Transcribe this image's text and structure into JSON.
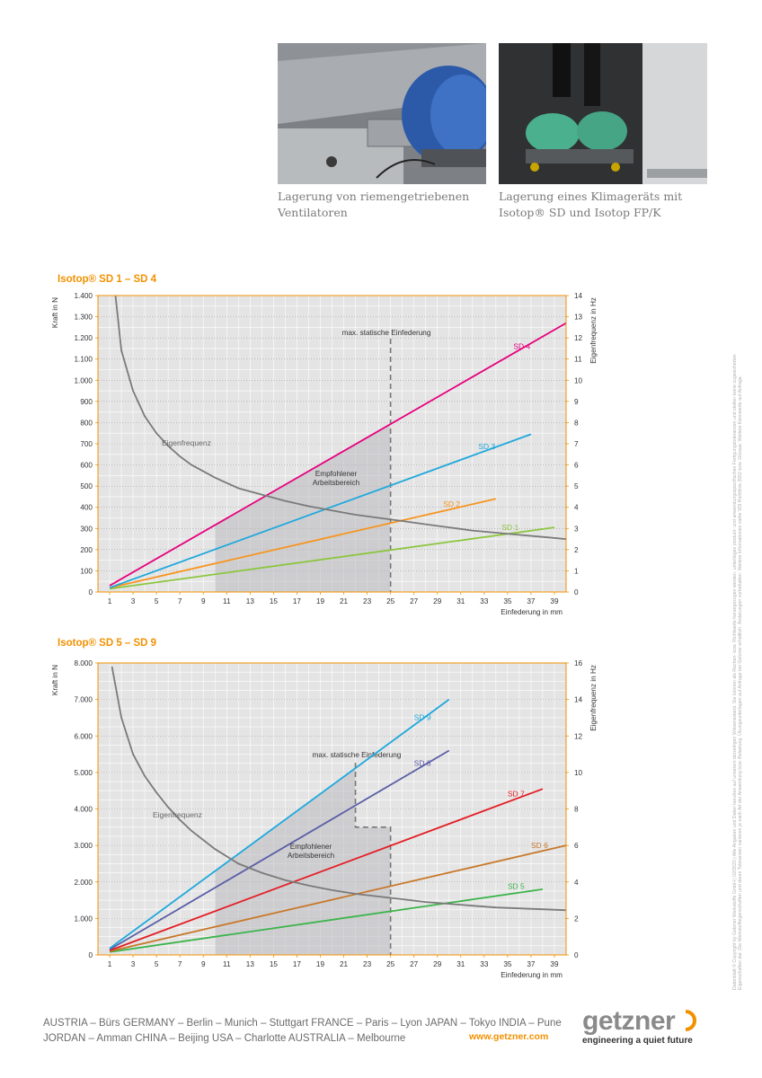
{
  "photos": [
    {
      "caption_line1": "Lagerung von riemengetriebenen",
      "caption_line2": "Ventilatoren"
    },
    {
      "caption_line1": "Lagerung eines Klimageräts mit",
      "caption_line2": "Isotop® SD und Isotop FP/K"
    }
  ],
  "side_note": "Datenblatt © Copyright by Getzner Werkstoffe GmbH | 02/2023 | Alle Angaben und Daten beruhen auf unserem derzeitigen Wissensstand. Sie können als Rechen- bzw. Richtwerte herangezogen werden, unterliegen produkt- und anwendungsspezifischen Fertigungstoleranzen und stellen keine zugesicherten Eigenschaften dar. Die Werkstoffeigenschaften und deren Toleranzen variieren je nach Art der Anwendung bzw. Belastung. Übungsunterlagen auf Anfrage bei Getzner erhältlich. Änderungen vorbehalten. Weitere Informationen siehe VDI Richtlinie 2062 bzw. Glossar. Weitere Kennwerte auf Anfrage.",
  "footer": {
    "line1": "AUSTRIA – Bürs  GERMANY – Berlin – Munich – Stuttgart  FRANCE – Paris – Lyon  JAPAN – Tokyo  INDIA – Pune",
    "line2": "JORDAN – Amman  CHINA – Beijing  USA – Charlotte  AUSTRALIA – Melbourne",
    "url": "www.getzner.com",
    "logo_word": "getzner",
    "logo_tagline": "engineering a quiet future"
  },
  "colors": {
    "accent": "#f29100",
    "grid_bg": "#e4e4e4",
    "grid_line": "#ffffff",
    "curve": "#7a7a7a"
  },
  "chart_data": [
    {
      "type": "line",
      "title": "Isotop® SD 1 – SD 4",
      "xlabel": "Einfederung in mm",
      "ylabel_left": "Kraft in N",
      "ylabel_right": "Eigenfrequenz in Hz",
      "xlim": [
        0,
        40
      ],
      "ylim_left": [
        0,
        1400
      ],
      "ylim_right": [
        0,
        14
      ],
      "xticks": [
        1,
        3,
        5,
        7,
        9,
        11,
        13,
        15,
        17,
        19,
        21,
        23,
        25,
        27,
        29,
        31,
        33,
        35,
        37,
        39
      ],
      "xtick_labels": [
        "1",
        "3",
        "5",
        "7",
        "9",
        "11",
        "13",
        "15",
        "17",
        "19",
        "21",
        "23",
        "25",
        "27",
        "29",
        "31",
        "33",
        "35",
        "37",
        "39"
      ],
      "yticks_left": [
        0,
        100,
        200,
        300,
        400,
        500,
        600,
        700,
        800,
        900,
        1000,
        1100,
        1200,
        1300,
        1400
      ],
      "ytick_labels_left": [
        "0",
        "100",
        "200",
        "300",
        "400",
        "500",
        "600",
        "700",
        "800",
        "900",
        "1.000",
        "1.100",
        "1.200",
        "1.300",
        "1.400"
      ],
      "yticks_right": [
        0,
        1,
        2,
        3,
        4,
        5,
        6,
        7,
        8,
        9,
        10,
        11,
        12,
        13,
        14
      ],
      "ytick_labels_right": [
        "0",
        "1",
        "2",
        "3",
        "4",
        "5",
        "6",
        "7",
        "8",
        "9",
        "10",
        "11",
        "12",
        "13",
        "14"
      ],
      "series": [
        {
          "name": "SD 1",
          "color": "#8cc63f",
          "x": [
            1,
            39
          ],
          "y": [
            15,
            305
          ]
        },
        {
          "name": "SD 2",
          "color": "#f7941d",
          "x": [
            1,
            34
          ],
          "y": [
            20,
            440
          ]
        },
        {
          "name": "SD 3",
          "color": "#1fa8dc",
          "x": [
            1,
            37
          ],
          "y": [
            20,
            745
          ]
        },
        {
          "name": "SD 4",
          "color": "#e6007e",
          "x": [
            1,
            40
          ],
          "y": [
            30,
            1270
          ]
        }
      ],
      "frequency_curve": {
        "name": "Eigenfrequenz",
        "x": [
          1.5,
          2,
          3,
          4,
          5,
          6,
          7,
          8,
          10,
          12,
          14,
          16,
          18,
          20,
          22,
          24,
          26,
          28,
          30,
          32,
          34,
          36,
          38,
          40
        ],
        "hz": [
          14.0,
          11.4,
          9.5,
          8.3,
          7.5,
          6.9,
          6.4,
          6.0,
          5.4,
          4.9,
          4.6,
          4.3,
          4.05,
          3.85,
          3.65,
          3.5,
          3.35,
          3.2,
          3.05,
          2.9,
          2.8,
          2.7,
          2.6,
          2.5
        ]
      },
      "max_deflection": {
        "label": "max. statische Einfederung",
        "x": 25
      },
      "working_area": {
        "label_line1": "Empfohlener",
        "label_line2": "Arbeitsbereich",
        "x_start": 10,
        "x_end": 25
      }
    },
    {
      "type": "line",
      "title": "Isotop® SD 5 – SD 9",
      "xlabel": "Einfederung in mm",
      "ylabel_left": "Kraft in N",
      "ylabel_right": "Eigenfrequenz in Hz",
      "xlim": [
        0,
        40
      ],
      "ylim_left": [
        0,
        8000
      ],
      "ylim_right": [
        0,
        16
      ],
      "xticks": [
        1,
        3,
        5,
        7,
        9,
        11,
        13,
        15,
        17,
        19,
        21,
        23,
        25,
        27,
        29,
        31,
        33,
        35,
        37,
        39
      ],
      "xtick_labels": [
        "1",
        "3",
        "5",
        "7",
        "9",
        "11",
        "13",
        "15",
        "17",
        "19",
        "21",
        "23",
        "25",
        "27",
        "29",
        "31",
        "33",
        "35",
        "37",
        "39"
      ],
      "yticks_left": [
        0,
        1000,
        2000,
        3000,
        4000,
        5000,
        6000,
        7000,
        8000
      ],
      "ytick_labels_left": [
        "0",
        "1.000",
        "2.000",
        "3.000",
        "4.000",
        "5.000",
        "6.000",
        "7.000",
        "8.000"
      ],
      "yticks_right": [
        0,
        2,
        4,
        6,
        8,
        10,
        12,
        14,
        16
      ],
      "ytick_labels_right": [
        "0",
        "2",
        "4",
        "6",
        "8",
        "10",
        "12",
        "14",
        "16"
      ],
      "series": [
        {
          "name": "SD 5",
          "color": "#3cb44b",
          "x": [
            1,
            38
          ],
          "y": [
            80,
            1800
          ]
        },
        {
          "name": "SD 6",
          "color": "#c8782a",
          "x": [
            1,
            40
          ],
          "y": [
            100,
            3000
          ]
        },
        {
          "name": "SD 7",
          "color": "#e31e24",
          "x": [
            1,
            38
          ],
          "y": [
            120,
            4550
          ]
        },
        {
          "name": "SD 8",
          "color": "#5b5ea6",
          "x": [
            1,
            30
          ],
          "y": [
            150,
            5600
          ]
        },
        {
          "name": "SD 9",
          "color": "#1fa8dc",
          "x": [
            1,
            30
          ],
          "y": [
            180,
            7000
          ]
        }
      ],
      "frequency_curve": {
        "name": "Eigenfrequenz",
        "x": [
          1.2,
          2,
          3,
          4,
          5,
          6,
          7,
          8,
          10,
          12,
          14,
          16,
          18,
          20,
          22,
          24,
          26,
          28,
          30,
          32,
          34,
          36,
          38,
          40
        ],
        "hz": [
          15.8,
          13.0,
          11.0,
          9.8,
          8.9,
          8.1,
          7.4,
          6.8,
          5.8,
          5.0,
          4.5,
          4.1,
          3.8,
          3.55,
          3.35,
          3.2,
          3.05,
          2.9,
          2.8,
          2.7,
          2.6,
          2.55,
          2.5,
          2.45
        ]
      },
      "max_deflection": {
        "label": "max. statische Einfederung",
        "x": 25,
        "step_x": 22,
        "step_force": 3500
      },
      "working_area": {
        "label_line1": "Empfohlener",
        "label_line2": "Arbeitsbereich",
        "x_start": 10,
        "x_end": 25
      }
    }
  ]
}
